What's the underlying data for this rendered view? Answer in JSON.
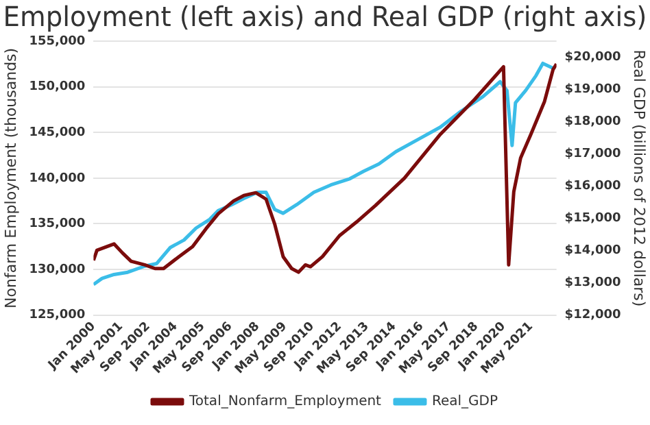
{
  "chart_data": {
    "type": "line",
    "title": "Employment (left axis) and Real GDP (right axis)",
    "ylabel": "Nonfarm Employment (thousands)",
    "y2label": "Real GDP (billions of 2012 dollars)",
    "xlim": [
      "2000-01",
      "2022-08"
    ],
    "xticks": [
      {
        "value": "2000-01",
        "label": "Jan 2000"
      },
      {
        "value": "2001-05",
        "label": "May 2001"
      },
      {
        "value": "2002-09",
        "label": "Sep 2002"
      },
      {
        "value": "2004-01",
        "label": "Jan 2004"
      },
      {
        "value": "2005-05",
        "label": "May 2005"
      },
      {
        "value": "2006-09",
        "label": "Sep 2006"
      },
      {
        "value": "2008-01",
        "label": "Jan 2008"
      },
      {
        "value": "2009-05",
        "label": "May 2009"
      },
      {
        "value": "2010-09",
        "label": "Sep 2010"
      },
      {
        "value": "2012-01",
        "label": "Jan 2012"
      },
      {
        "value": "2013-05",
        "label": "May 2013"
      },
      {
        "value": "2014-09",
        "label": "Sep 2014"
      },
      {
        "value": "2016-01",
        "label": "Jan 2016"
      },
      {
        "value": "2017-05",
        "label": "May 2017"
      },
      {
        "value": "2018-09",
        "label": "Sep 2018"
      },
      {
        "value": "2020-01",
        "label": "Jan 2020"
      },
      {
        "value": "2021-05",
        "label": "May 2021"
      }
    ],
    "ylim": [
      125000,
      155000
    ],
    "yticks": [
      {
        "value": 125000,
        "label": "125,000"
      },
      {
        "value": 130000,
        "label": "130,000"
      },
      {
        "value": 135000,
        "label": "135,000"
      },
      {
        "value": 140000,
        "label": "140,000"
      },
      {
        "value": 145000,
        "label": "145,000"
      },
      {
        "value": 150000,
        "label": "150,000"
      },
      {
        "value": 155000,
        "label": "155,000"
      }
    ],
    "y2lim": [
      12000,
      20500
    ],
    "y2ticks": [
      {
        "value": 12000,
        "label": "$12,000"
      },
      {
        "value": 13000,
        "label": "$13,000"
      },
      {
        "value": 14000,
        "label": "$14,000"
      },
      {
        "value": 15000,
        "label": "$15,000"
      },
      {
        "value": 16000,
        "label": "$16,000"
      },
      {
        "value": 17000,
        "label": "$17,000"
      },
      {
        "value": 18000,
        "label": "$18,000"
      },
      {
        "value": 19000,
        "label": "$19,000"
      },
      {
        "value": 20000,
        "label": "$20,000"
      }
    ],
    "grid": "y",
    "legend": "bottom",
    "marker": "none",
    "line_style": "solid",
    "series": [
      {
        "name": "Total_Nonfarm_Employment",
        "color": "#7b0c0c",
        "x": [
          "2000-01",
          "2000-03",
          "2001-01",
          "2001-06",
          "2001-11",
          "2002-07",
          "2003-01",
          "2003-06",
          "2004-03",
          "2004-11",
          "2005-07",
          "2006-02",
          "2006-11",
          "2007-05",
          "2007-12",
          "2008-06",
          "2008-11",
          "2009-04",
          "2009-09",
          "2010-01",
          "2010-05",
          "2010-08",
          "2011-03",
          "2012-01",
          "2012-11",
          "2013-10",
          "2015-03",
          "2016-12",
          "2018-08",
          "2020-01",
          "2020-04",
          "2020-07",
          "2020-11",
          "2021-05",
          "2022-01",
          "2022-06",
          "2022-08"
        ],
        "values": [
          131000,
          132100,
          132800,
          131800,
          130900,
          130500,
          130100,
          130100,
          131400,
          132500,
          134500,
          136100,
          137500,
          138100,
          138400,
          137700,
          135000,
          131400,
          130100,
          129700,
          130500,
          130300,
          131400,
          133700,
          135200,
          137000,
          140000,
          144800,
          148600,
          152200,
          130500,
          138500,
          142200,
          144800,
          148400,
          151900,
          152500
        ]
      },
      {
        "name": "Real_GDP",
        "color": "#3bbde8",
        "axis": "y2",
        "x": [
          "2000-01",
          "2000-06",
          "2001-01",
          "2001-09",
          "2002-07",
          "2003-02",
          "2003-10",
          "2004-06",
          "2005-01",
          "2005-09",
          "2006-02",
          "2006-10",
          "2007-05",
          "2008-01",
          "2008-06",
          "2008-11",
          "2009-04",
          "2009-12",
          "2010-10",
          "2011-08",
          "2012-07",
          "2013-03",
          "2013-12",
          "2014-10",
          "2015-11",
          "2016-12",
          "2017-12",
          "2019-01",
          "2019-11",
          "2020-03",
          "2020-06",
          "2020-08",
          "2021-02",
          "2021-08",
          "2021-12",
          "2022-06"
        ],
        "values": [
          12950,
          13140,
          13260,
          13330,
          13520,
          13600,
          14100,
          14330,
          14700,
          14970,
          15240,
          15430,
          15620,
          15810,
          15810,
          15280,
          15160,
          15430,
          15810,
          16040,
          16230,
          16460,
          16690,
          17070,
          17450,
          17830,
          18320,
          18780,
          19240,
          18970,
          17260,
          18590,
          18970,
          19430,
          19810,
          19660
        ]
      }
    ]
  }
}
